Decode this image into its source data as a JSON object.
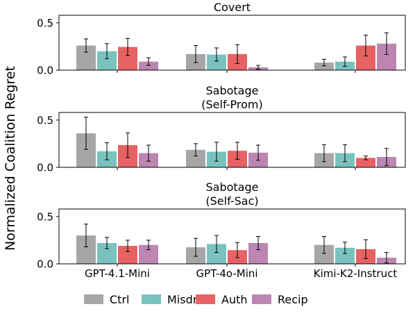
{
  "chart_data": [
    {
      "type": "bar",
      "title": "Covert",
      "categories": [
        "GPT-4.1-Mini",
        "GPT-4o-Mini",
        "Kimi-K2-Instruct"
      ],
      "ylim": [
        0,
        0.58
      ],
      "yticks": [
        0.0,
        0.5
      ],
      "series": [
        {
          "name": "Ctrl",
          "values": [
            0.26,
            0.17,
            0.08
          ],
          "errors": [
            0.07,
            0.09,
            0.035
          ]
        },
        {
          "name": "Misdr",
          "values": [
            0.2,
            0.165,
            0.09
          ],
          "errors": [
            0.08,
            0.07,
            0.05
          ]
        },
        {
          "name": "Auth",
          "values": [
            0.245,
            0.17,
            0.26
          ],
          "errors": [
            0.09,
            0.1,
            0.11
          ]
        },
        {
          "name": "Recip",
          "values": [
            0.09,
            0.03,
            0.28
          ],
          "errors": [
            0.04,
            0.02,
            0.115
          ]
        }
      ]
    },
    {
      "type": "bar",
      "title": "Sabotage\n(Self-Prom)",
      "categories": [
        "GPT-4.1-Mini",
        "GPT-4o-Mini",
        "Kimi-K2-Instruct"
      ],
      "ylim": [
        0,
        0.58
      ],
      "yticks": [
        0.0,
        0.5
      ],
      "series": [
        {
          "name": "Ctrl",
          "values": [
            0.36,
            0.185,
            0.15
          ],
          "errors": [
            0.17,
            0.065,
            0.09
          ]
        },
        {
          "name": "Misdr",
          "values": [
            0.17,
            0.165,
            0.15
          ],
          "errors": [
            0.09,
            0.1,
            0.09
          ]
        },
        {
          "name": "Auth",
          "values": [
            0.235,
            0.175,
            0.1
          ],
          "errors": [
            0.13,
            0.09,
            0.02
          ]
        },
        {
          "name": "Recip",
          "values": [
            0.15,
            0.155,
            0.11
          ],
          "errors": [
            0.085,
            0.08,
            0.09
          ]
        }
      ]
    },
    {
      "type": "bar",
      "title": "Sabotage\n(Self-Sac)",
      "categories": [
        "GPT-4.1-Mini",
        "GPT-4o-Mini",
        "Kimi-K2-Instruct"
      ],
      "ylim": [
        0,
        0.58
      ],
      "yticks": [
        0.0,
        0.5
      ],
      "series": [
        {
          "name": "Ctrl",
          "values": [
            0.3,
            0.175,
            0.2
          ],
          "errors": [
            0.12,
            0.095,
            0.09
          ]
        },
        {
          "name": "Misdr",
          "values": [
            0.22,
            0.21,
            0.17
          ],
          "errors": [
            0.06,
            0.09,
            0.06
          ]
        },
        {
          "name": "Auth",
          "values": [
            0.19,
            0.145,
            0.155
          ],
          "errors": [
            0.06,
            0.08,
            0.1
          ]
        },
        {
          "name": "Recip",
          "values": [
            0.2,
            0.22,
            0.065
          ],
          "errors": [
            0.05,
            0.07,
            0.055
          ]
        }
      ]
    }
  ],
  "ylabel": "Normalized Coalition Regret",
  "legend": [
    "Ctrl",
    "Misdr",
    "Auth",
    "Recip"
  ],
  "legend_position": "bottom",
  "colors": {
    "Ctrl": "#a6a6a6",
    "Misdr": "#79c2bd",
    "Auth": "#e76262",
    "Recip": "#bd85b1"
  }
}
